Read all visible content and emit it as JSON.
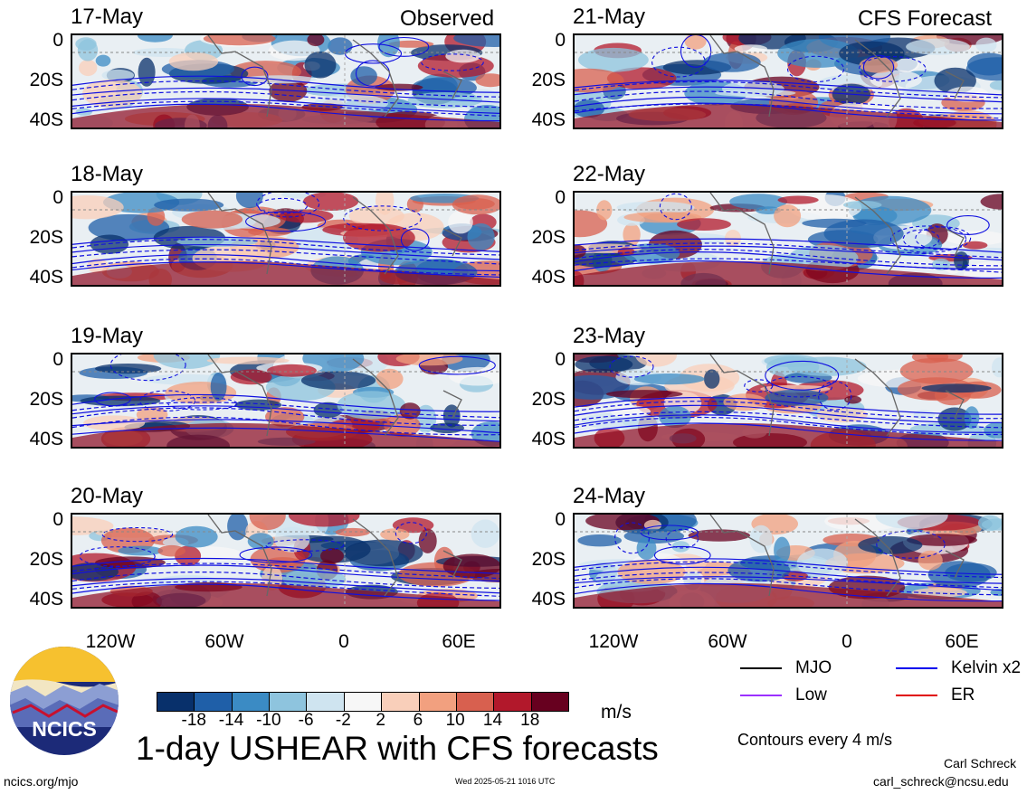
{
  "title": "1-day USHEAR with CFS forecasts",
  "labels": {
    "observed": "Observed",
    "forecast": "CFS Forecast"
  },
  "panels": {
    "left": [
      "17-May",
      "18-May",
      "19-May",
      "20-May"
    ],
    "right": [
      "21-May",
      "22-May",
      "23-May",
      "24-May"
    ]
  },
  "axes": {
    "lat_ticks": [
      "0",
      "20S",
      "40S"
    ],
    "lon_ticks": [
      "120W",
      "60W",
      "0",
      "60E"
    ]
  },
  "colorbar": {
    "unit": "m/s",
    "tick_labels": [
      "-18",
      "-14",
      "-10",
      "-6",
      "-2",
      "2",
      "6",
      "10",
      "14",
      "18"
    ],
    "colors": [
      "#08306b",
      "#1f5fa8",
      "#3b8bc4",
      "#8ec4de",
      "#cfe4f0",
      "#f7f7f7",
      "#f9cfba",
      "#f2a07f",
      "#d8604f",
      "#b2182b",
      "#67001f"
    ]
  },
  "line_legend": {
    "items": [
      {
        "label": "MJO",
        "color": "#000000"
      },
      {
        "label": "Kelvin x2",
        "color": "#0000ee"
      },
      {
        "label": "Low",
        "color": "#9b30ff"
      },
      {
        "label": "ER",
        "color": "#e00000"
      }
    ],
    "note": "Contours every 4 m/s"
  },
  "footer": {
    "logo": "NCICS",
    "url": "ncics.org/mjo",
    "timestamp": "Wed 2025-05-21 1016 UTC",
    "author": "Carl Schreck",
    "email": "carl_schreck@ncsu.edu"
  },
  "chart_data": {
    "type": "heatmap",
    "title": "1-day USHEAR with CFS forecasts",
    "xlabel": "",
    "ylabel": "",
    "x_ticks": [
      "120W",
      "60W",
      "0",
      "60E"
    ],
    "y_ticks": [
      "0",
      "20S",
      "40S"
    ],
    "colorbar_levels": [
      -18,
      -14,
      -10,
      -6,
      -2,
      2,
      6,
      10,
      14,
      18
    ],
    "unit": "m/s",
    "panels": [
      "17-May",
      "18-May",
      "19-May",
      "20-May",
      "21-May",
      "22-May",
      "23-May",
      "24-May"
    ]
  }
}
